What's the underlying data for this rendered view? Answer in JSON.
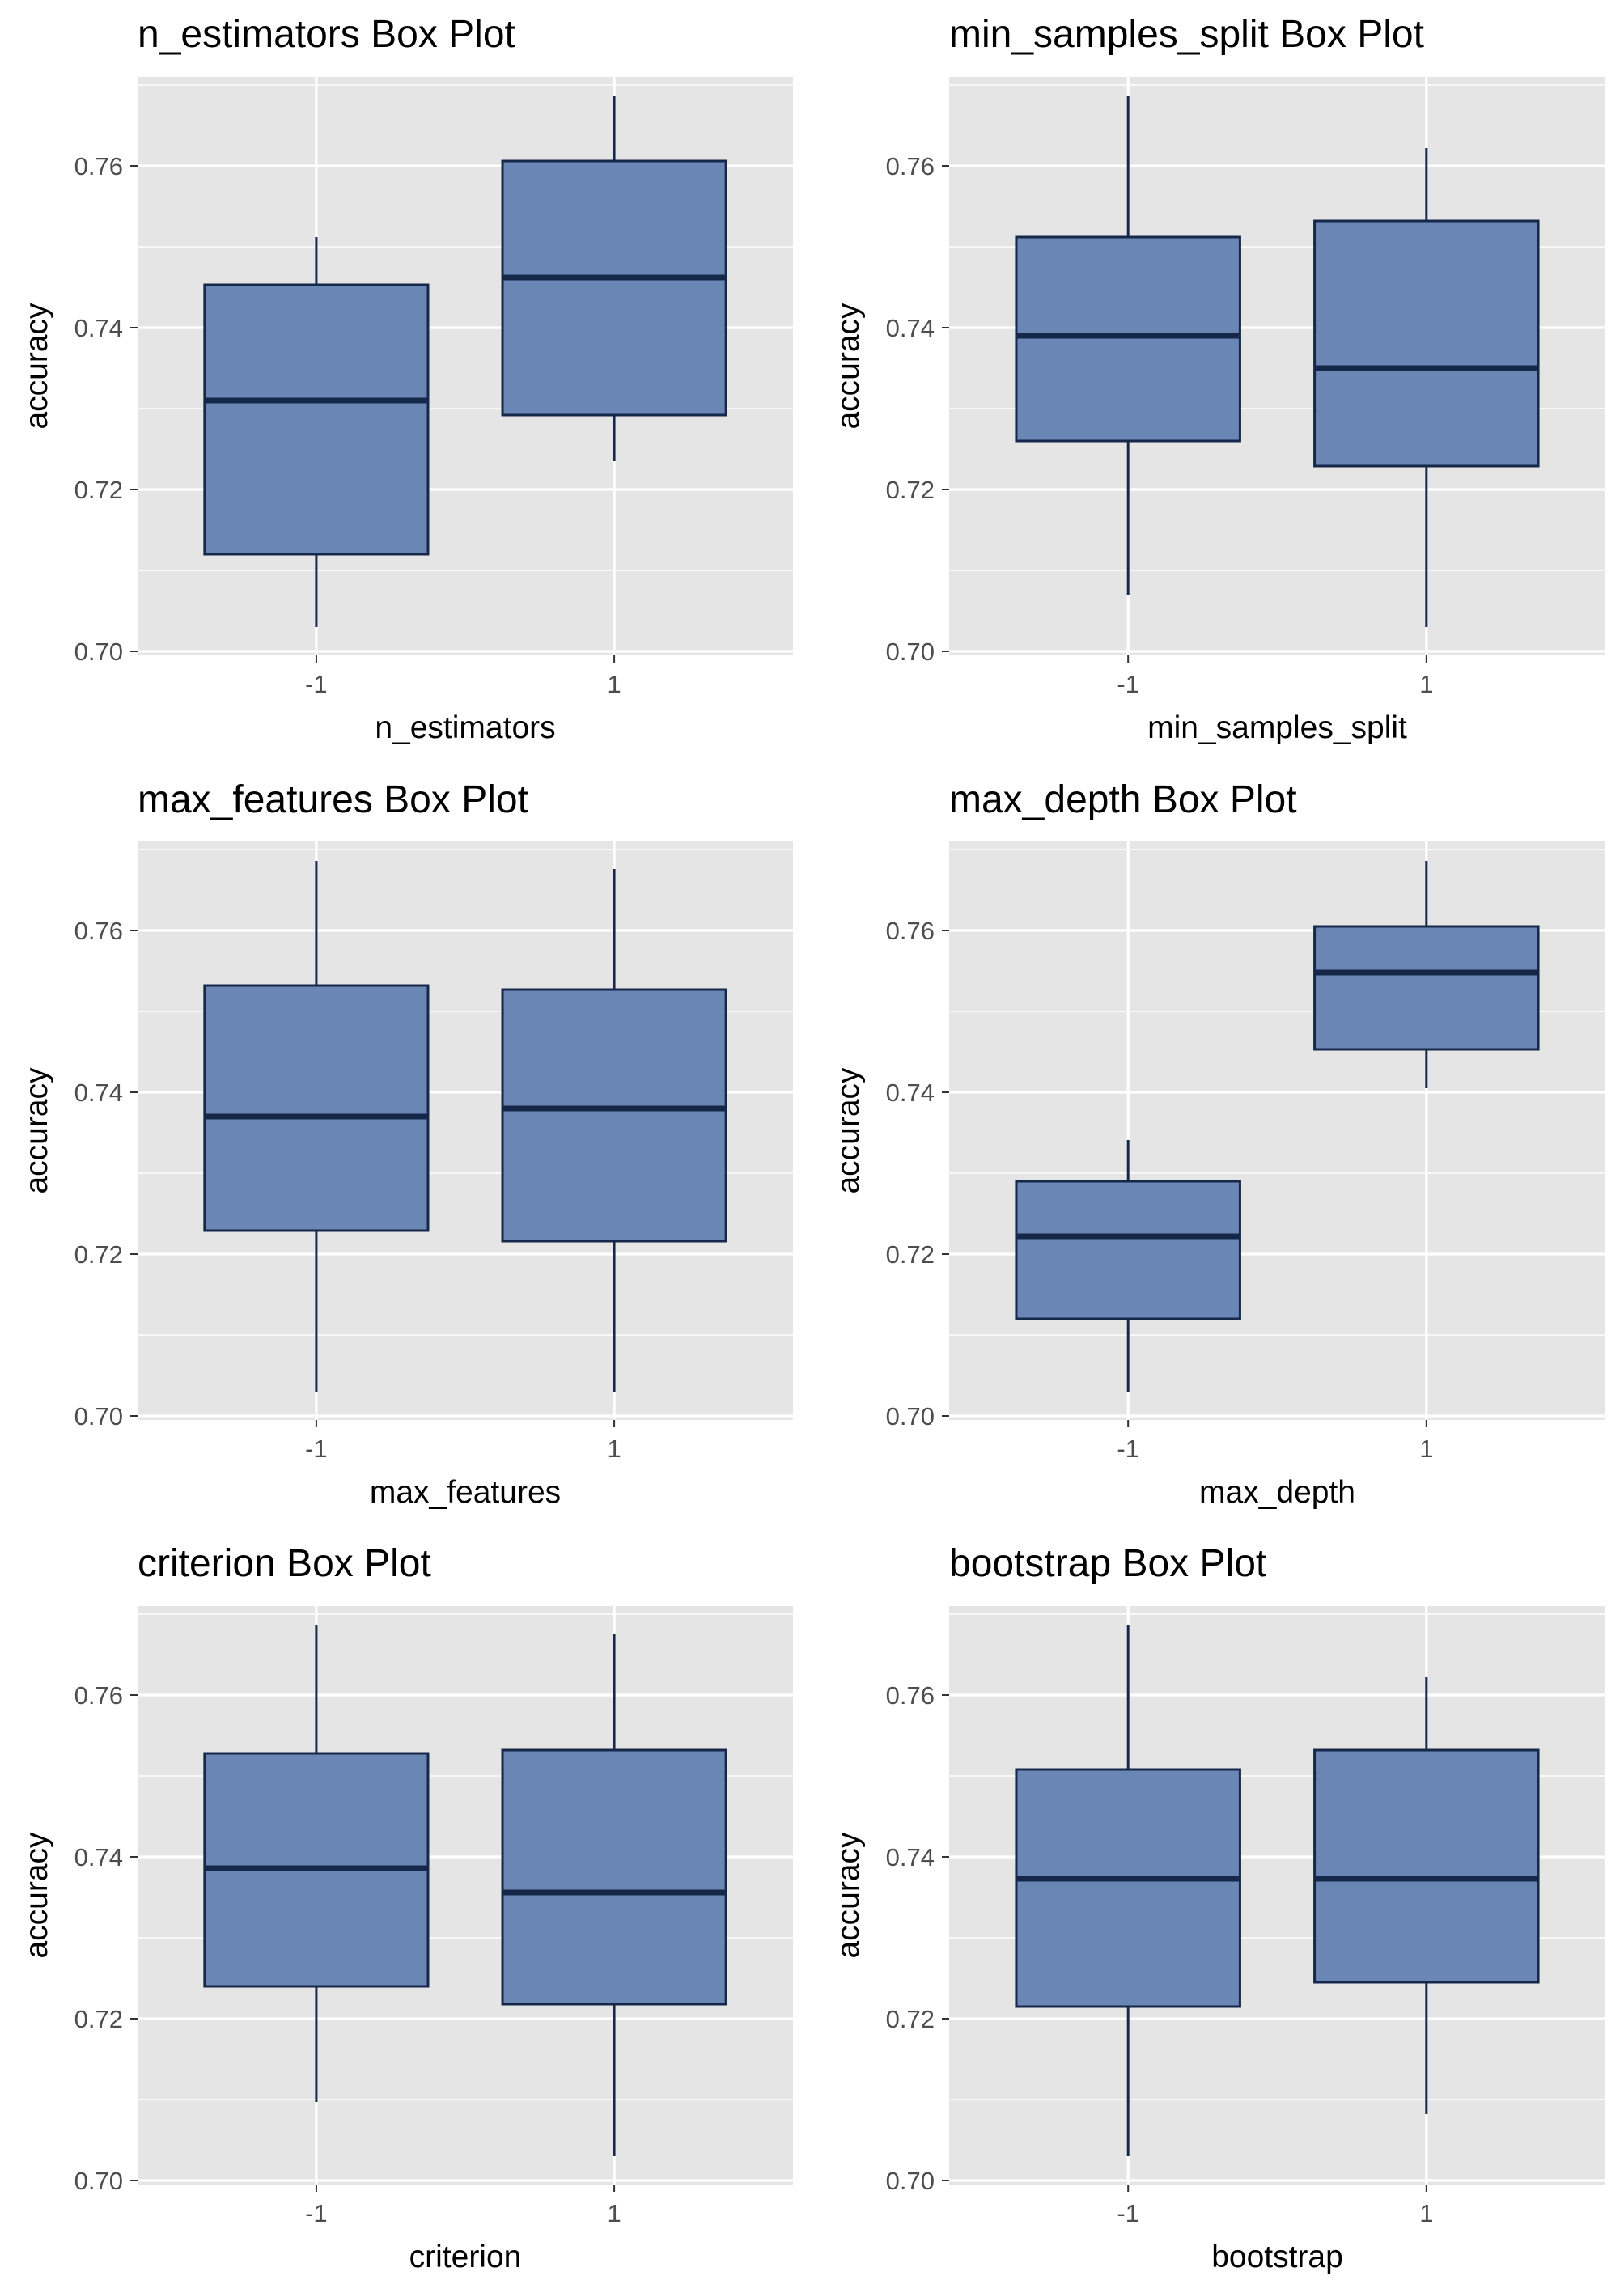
{
  "colors": {
    "panel_background": "#e5e5e5",
    "grid": "#ffffff",
    "box_fill": "#6a86b4",
    "box_stroke": "#16284a",
    "median": "#16284a",
    "whisker": "#16284a",
    "tick_label": "#4d4d4d",
    "text": "#000000"
  },
  "chart_data": [
    {
      "type": "box",
      "title": "n_estimators Box Plot",
      "xlabel": "n_estimators",
      "ylabel": "accuracy",
      "categories": [
        "-1",
        "1"
      ],
      "y_ticks": [
        "0.70",
        "0.72",
        "0.74",
        "0.76"
      ],
      "ylim": [
        0.7,
        0.77
      ],
      "grid": true,
      "boxes": [
        {
          "category": "-1",
          "min": 0.703,
          "q1": 0.712,
          "median": 0.731,
          "q3": 0.7453,
          "max": 0.7512
        },
        {
          "category": "1",
          "min": 0.7235,
          "q1": 0.7292,
          "median": 0.7462,
          "q3": 0.7606,
          "max": 0.7686
        }
      ]
    },
    {
      "type": "box",
      "title": "min_samples_split Box Plot",
      "xlabel": "min_samples_split",
      "ylabel": "accuracy",
      "categories": [
        "-1",
        "1"
      ],
      "y_ticks": [
        "0.70",
        "0.72",
        "0.74",
        "0.76"
      ],
      "ylim": [
        0.7,
        0.77
      ],
      "grid": true,
      "boxes": [
        {
          "category": "-1",
          "min": 0.707,
          "q1": 0.726,
          "median": 0.739,
          "q3": 0.7512,
          "max": 0.7686
        },
        {
          "category": "1",
          "min": 0.703,
          "q1": 0.7229,
          "median": 0.735,
          "q3": 0.7532,
          "max": 0.7622
        }
      ]
    },
    {
      "type": "box",
      "title": "max_features Box Plot",
      "xlabel": "max_features",
      "ylabel": "accuracy",
      "categories": [
        "-1",
        "1"
      ],
      "y_ticks": [
        "0.70",
        "0.72",
        "0.74",
        "0.76"
      ],
      "ylim": [
        0.7,
        0.77
      ],
      "grid": true,
      "boxes": [
        {
          "category": "-1",
          "min": 0.703,
          "q1": 0.7229,
          "median": 0.737,
          "q3": 0.7532,
          "max": 0.7686
        },
        {
          "category": "1",
          "min": 0.703,
          "q1": 0.7216,
          "median": 0.738,
          "q3": 0.7527,
          "max": 0.7676
        }
      ]
    },
    {
      "type": "box",
      "title": "max_depth Box Plot",
      "xlabel": "max_depth",
      "ylabel": "accuracy",
      "categories": [
        "-1",
        "1"
      ],
      "y_ticks": [
        "0.70",
        "0.72",
        "0.74",
        "0.76"
      ],
      "ylim": [
        0.7,
        0.77
      ],
      "grid": true,
      "boxes": [
        {
          "category": "-1",
          "min": 0.703,
          "q1": 0.712,
          "median": 0.7222,
          "q3": 0.729,
          "max": 0.7341
        },
        {
          "category": "1",
          "min": 0.7405,
          "q1": 0.7453,
          "median": 0.7548,
          "q3": 0.7605,
          "max": 0.7686
        }
      ]
    },
    {
      "type": "box",
      "title": "criterion Box Plot",
      "xlabel": "criterion",
      "ylabel": "accuracy",
      "categories": [
        "-1",
        "1"
      ],
      "y_ticks": [
        "0.70",
        "0.72",
        "0.74",
        "0.76"
      ],
      "ylim": [
        0.7,
        0.77
      ],
      "grid": true,
      "boxes": [
        {
          "category": "-1",
          "min": 0.7097,
          "q1": 0.724,
          "median": 0.7386,
          "q3": 0.7528,
          "max": 0.7686
        },
        {
          "category": "1",
          "min": 0.703,
          "q1": 0.7218,
          "median": 0.7356,
          "q3": 0.7532,
          "max": 0.7676
        }
      ]
    },
    {
      "type": "box",
      "title": "bootstrap Box Plot",
      "xlabel": "bootstrap",
      "ylabel": "accuracy",
      "categories": [
        "-1",
        "1"
      ],
      "y_ticks": [
        "0.70",
        "0.72",
        "0.74",
        "0.76"
      ],
      "ylim": [
        0.7,
        0.77
      ],
      "grid": true,
      "boxes": [
        {
          "category": "-1",
          "min": 0.703,
          "q1": 0.7215,
          "median": 0.7373,
          "q3": 0.7508,
          "max": 0.7686
        },
        {
          "category": "1",
          "min": 0.7082,
          "q1": 0.7245,
          "median": 0.7373,
          "q3": 0.7532,
          "max": 0.7622
        }
      ]
    }
  ]
}
